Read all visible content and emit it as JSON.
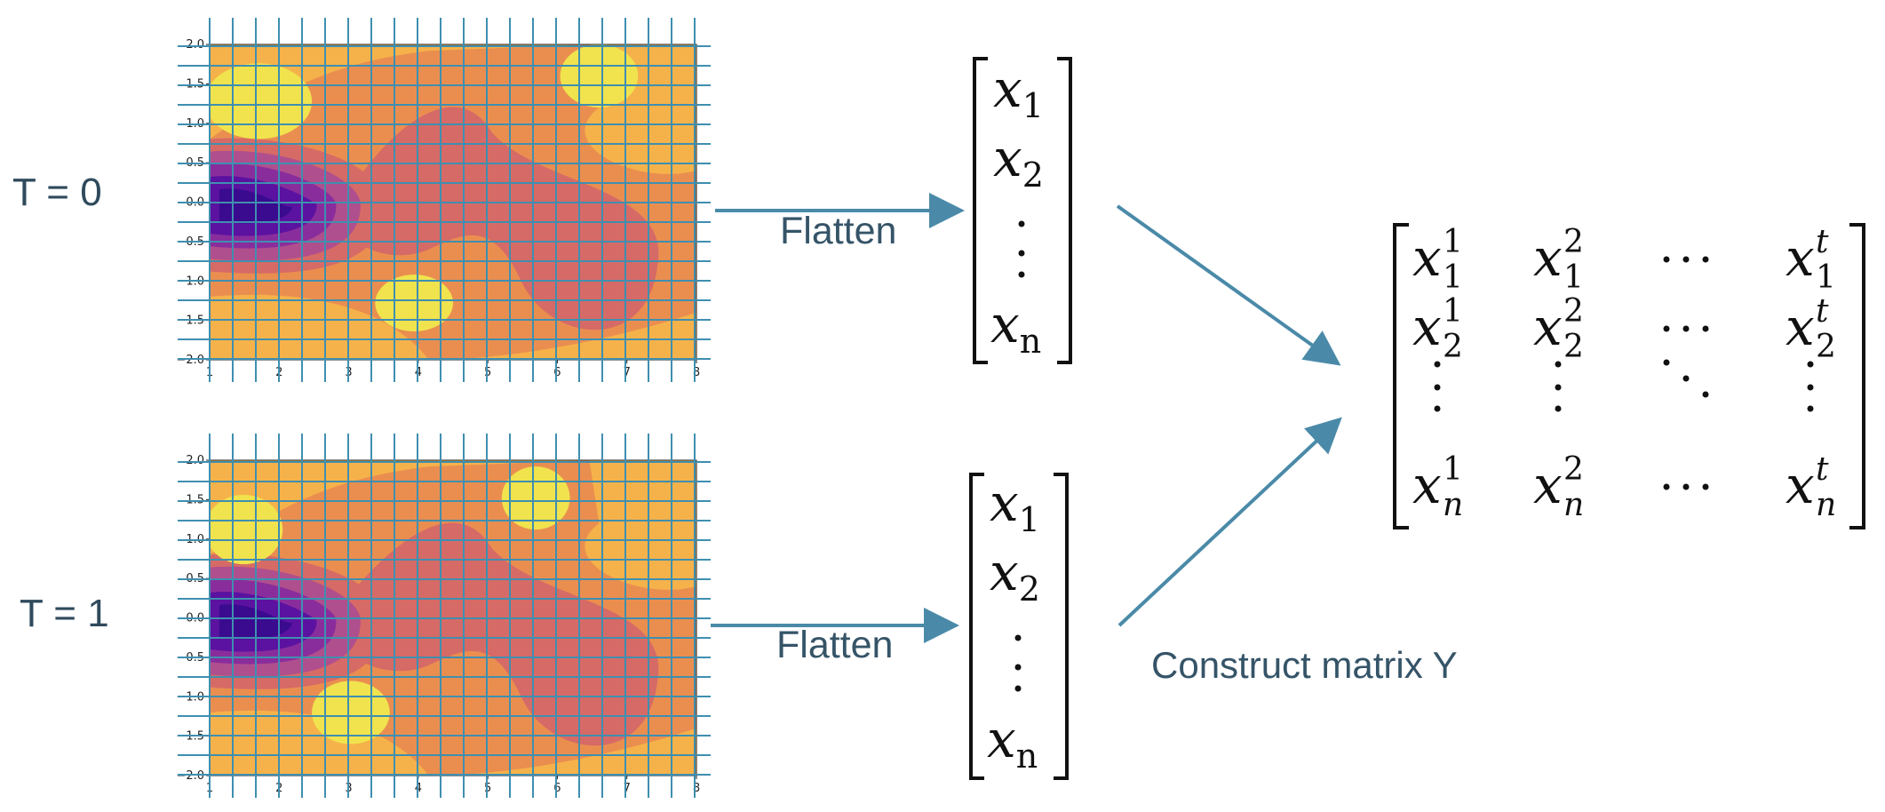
{
  "panels": [
    {
      "time_label": "T = 0",
      "flatten_label": "Flatten",
      "x_ticks": [
        "1",
        "2",
        "3",
        "4",
        "5",
        "6",
        "7",
        "8"
      ],
      "y_ticks": [
        "2.0",
        "1.5",
        "1.0",
        "0.5",
        "0.0",
        "−0.5",
        "−1.0",
        "−1.5",
        "−2.0"
      ]
    },
    {
      "time_label": "T = 1",
      "flatten_label": "Flatten",
      "x_ticks": [
        "1",
        "2",
        "3",
        "4",
        "5",
        "6",
        "7",
        "8"
      ],
      "y_ticks": [
        "2.0",
        "1.5",
        "1.0",
        "0.5",
        "0.0",
        "−0.5",
        "−1.0",
        "−1.5",
        "−2.0"
      ]
    }
  ],
  "vector": {
    "first": "x",
    "first_sub": "1",
    "second": "x",
    "second_sub": "2",
    "last": "x",
    "last_sub": "n"
  },
  "matrix": {
    "rows": [
      [
        {
          "b": "x",
          "sup": "1",
          "sub": "1"
        },
        {
          "b": "x",
          "sup": "2",
          "sub": "1"
        },
        {
          "b": "dots"
        },
        {
          "b": "x",
          "sup": "t",
          "sub": "1"
        }
      ],
      [
        {
          "b": "x",
          "sup": "1",
          "sub": "2"
        },
        {
          "b": "x",
          "sup": "2",
          "sub": "2"
        },
        {
          "b": "dots"
        },
        {
          "b": "x",
          "sup": "t",
          "sub": "2"
        }
      ],
      [
        {
          "b": "vdots"
        },
        {
          "b": "vdots"
        },
        {
          "b": "ddots"
        },
        {
          "b": "vdots"
        }
      ],
      [
        {
          "b": "x",
          "sup": "1",
          "sub": "n"
        },
        {
          "b": "x",
          "sup": "2",
          "sub": "n"
        },
        {
          "b": "dots"
        },
        {
          "b": "x",
          "sup": "t",
          "sub": "n"
        }
      ]
    ]
  },
  "construct_label": "Construct matrix Y",
  "colors": {
    "grid": "#3f8fb0",
    "arrow": "#4a8aa8",
    "palette": [
      "#f0e34e",
      "#f6b24a",
      "#ea8e50",
      "#d66a66",
      "#b04f8d",
      "#8a2d9c",
      "#5b12a0",
      "#3a0a8f"
    ]
  }
}
